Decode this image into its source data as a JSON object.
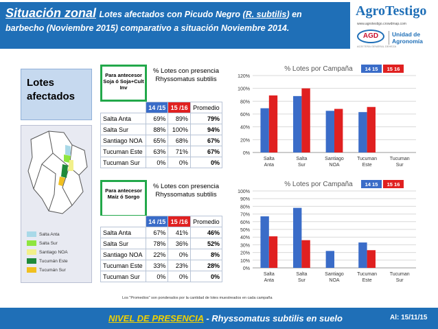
{
  "header": {
    "title_main": "Situación zonal",
    "title_rest_1": "Lotes afectados con Picudo Negro (",
    "title_sci": "R. subtilis",
    "title_rest_2": ") en",
    "title_line2": "barbecho (Noviembre 2015) comparativo a situación Noviembre 2014.",
    "logo_name": "AgroTestigo",
    "logo_url": "www.agrotestigo.crowdmap.com",
    "agd_text": "AGD",
    "agd_sub": "ACEITERA GENERAL DEHEZA",
    "unidad_line1": "Unidad de",
    "unidad_line2": "Agronomía"
  },
  "left_panel": {
    "label": "Lotes afectados",
    "legend": [
      {
        "name": "Salta Anta",
        "color": "#a9d9e8"
      },
      {
        "name": "Salta Sur",
        "color": "#8ee53f"
      },
      {
        "name": "Santiago NOA",
        "color": "#f2f08a"
      },
      {
        "name": "Tucumán Este",
        "color": "#1f8a3a"
      },
      {
        "name": "Tucumán Sur",
        "color": "#f0c020"
      }
    ]
  },
  "colors": {
    "series_1415": "#3a6cc8",
    "series_1516": "#e02020",
    "header_blue": "#1f6fb7",
    "green_box": "#22a84a"
  },
  "tables": [
    {
      "antecesor": "Para antecesor Soja ó Soja+Cult Inv",
      "title": "% Lotes con presencia Rhyssomatus subtilis",
      "col_1415": "14 /15",
      "col_1516": "15 /16",
      "col_prom": "Promedio",
      "rows": [
        {
          "zona": "Salta Anta",
          "v1": "69%",
          "v2": "89%",
          "prom": "79%"
        },
        {
          "zona": "Salta Sur",
          "v1": "88%",
          "v2": "100%",
          "prom": "94%"
        },
        {
          "zona": "Santiago NOA",
          "v1": "65%",
          "v2": "68%",
          "prom": "67%"
        },
        {
          "zona": "Tucuman Este",
          "v1": "63%",
          "v2": "71%",
          "prom": "67%"
        },
        {
          "zona": "Tucuman Sur",
          "v1": "0%",
          "v2": "0%",
          "prom": "0%"
        }
      ]
    },
    {
      "antecesor": "Para antecesor Maíz ó Sorgo",
      "title": "% Lotes con presencia Rhyssomatus subtilis",
      "col_1415": "14 /15",
      "col_1516": "15 /16",
      "col_prom": "Promedio",
      "rows": [
        {
          "zona": "Salta Anta",
          "v1": "67%",
          "v2": "41%",
          "prom": "46%"
        },
        {
          "zona": "Salta Sur",
          "v1": "78%",
          "v2": "36%",
          "prom": "52%"
        },
        {
          "zona": "Santiago NOA",
          "v1": "22%",
          "v2": "0%",
          "prom": "8%"
        },
        {
          "zona": "Tucuman Este",
          "v1": "33%",
          "v2": "23%",
          "prom": "28%"
        },
        {
          "zona": "Tucuman Sur",
          "v1": "0%",
          "v2": "0%",
          "prom": "0%"
        }
      ]
    }
  ],
  "chart_data": [
    {
      "type": "bar",
      "title": "% Lotes por Campaña",
      "categories": [
        "Salta Anta",
        "Salta Sur",
        "Santiago NOA",
        "Tucuman Este",
        "Tucuman Sur"
      ],
      "series": [
        {
          "name": "14 15",
          "values": [
            69,
            88,
            65,
            63,
            0
          ]
        },
        {
          "name": "15 16",
          "values": [
            89,
            100,
            68,
            71,
            0
          ]
        }
      ],
      "ylim": [
        0,
        120
      ],
      "yticks": [
        "0%",
        "20%",
        "40%",
        "60%",
        "80%",
        "100%",
        "120%"
      ],
      "grid": true,
      "legend": "top-right"
    },
    {
      "type": "bar",
      "title": "% Lotes por Campaña",
      "categories": [
        "Salta Anta",
        "Salta Sur",
        "Santiago NOA",
        "Tucuman Este",
        "Tucuman Sur"
      ],
      "series": [
        {
          "name": "14 15",
          "values": [
            67,
            78,
            22,
            33,
            0
          ]
        },
        {
          "name": "15 16",
          "values": [
            41,
            36,
            0,
            23,
            0
          ]
        }
      ],
      "ylim": [
        0,
        100
      ],
      "yticks": [
        "0%",
        "10%",
        "20%",
        "30%",
        "40%",
        "50%",
        "60%",
        "70%",
        "80%",
        "90%",
        "100%"
      ],
      "grid": true,
      "legend": "top-right"
    }
  ],
  "footnote": "Los \"Promedios\" son ponderados por la cantidad de lotes muestreados en cada campaña",
  "footer": {
    "nivel": "NIVEL DE PRESENCIA",
    "rest": " - Rhyssomatus subtilis en suelo",
    "date": "Al: 15/11/15"
  }
}
